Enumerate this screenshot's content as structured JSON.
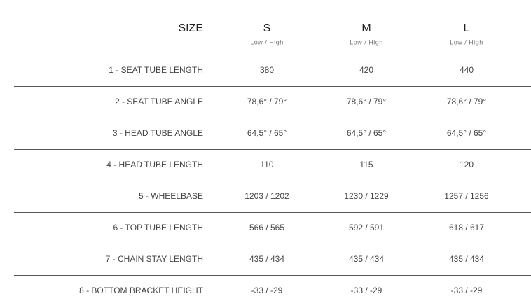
{
  "table": {
    "header": {
      "label": "SIZE",
      "columns": [
        {
          "size": "S",
          "sub": "Low / High"
        },
        {
          "size": "M",
          "sub": "Low / High"
        },
        {
          "size": "L",
          "sub": "Low / High"
        }
      ]
    },
    "rows": [
      [
        "1 - SEAT TUBE LENGTH",
        "380",
        "420",
        "440"
      ],
      [
        "2 - SEAT TUBE ANGLE",
        "78,6° / 79°",
        "78,6° / 79°",
        "78,6° / 79°"
      ],
      [
        "3 - HEAD TUBE ANGLE",
        "64,5° / 65°",
        "64,5° / 65°",
        "64,5° / 65°"
      ],
      [
        "4 - HEAD TUBE LENGTH",
        "110",
        "115",
        "120"
      ],
      [
        "5 - WHEELBASE",
        "1203 / 1202",
        "1230 / 1229",
        "1257 / 1256"
      ],
      [
        "6 - TOP TUBE LENGTH",
        "566 / 565",
        "592 / 591",
        "618 / 617"
      ],
      [
        "7 - CHAIN STAY LENGTH",
        "435 / 434",
        "435 / 434",
        "435 / 434"
      ],
      [
        "8 - BOTTOM BRACKET HEIGHT",
        "-33 / -29",
        "-33 / -29",
        "-33 / -29"
      ]
    ]
  }
}
